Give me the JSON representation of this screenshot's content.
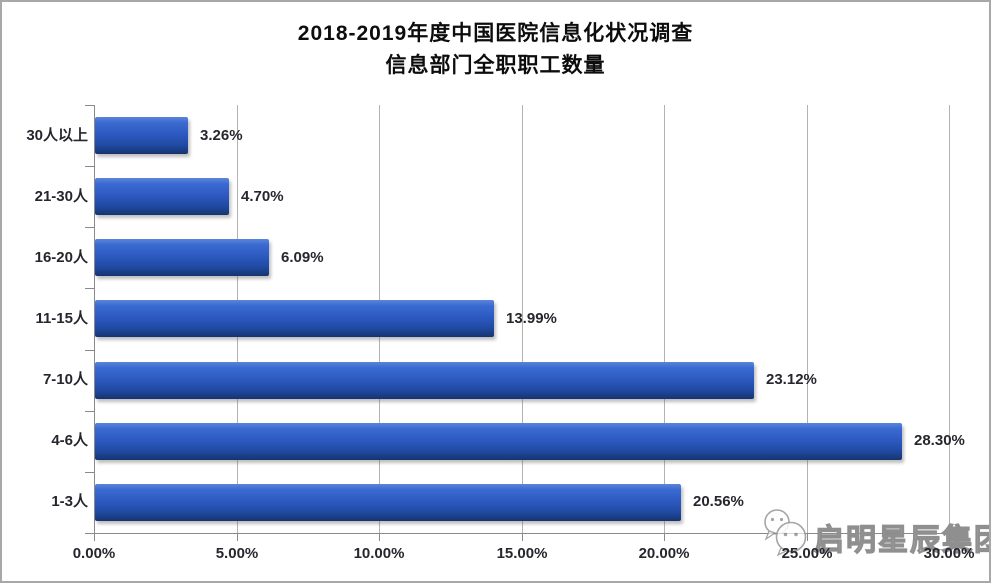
{
  "chart_data": {
    "type": "bar",
    "orientation": "horizontal",
    "title": "2018-2019年度中国医院信息化状况调查 信息部门全职职工数量",
    "title_line1": "2018-2019年度中国医院信息化状况调查",
    "title_line2": "信息部门全职职工数量",
    "categories": [
      "30人以上",
      "21-30人",
      "16-20人",
      "11-15人",
      "7-10人",
      "4-6人",
      "1-3人"
    ],
    "values": [
      3.26,
      4.7,
      6.09,
      13.99,
      23.12,
      28.3,
      20.56
    ],
    "value_labels": [
      "3.26%",
      "4.70%",
      "6.09%",
      "13.99%",
      "23.12%",
      "28.30%",
      "20.56%"
    ],
    "x_ticks": [
      "0.00%",
      "5.00%",
      "10.00%",
      "15.00%",
      "20.00%",
      "25.00%",
      "30.00%"
    ],
    "xlim": [
      0,
      30
    ],
    "grid": true,
    "legend": "none",
    "colors": {
      "bar_top": "#5b85db",
      "bar_mid": "#2c59c0",
      "bar_bottom": "#16336e",
      "gridline": "#b2b2b2",
      "axis": "#8a8a8a",
      "text": "#26262e",
      "border": "#a8a8a8"
    }
  },
  "watermark": {
    "icon": "wechat-icon",
    "text": "启明星辰集团"
  }
}
